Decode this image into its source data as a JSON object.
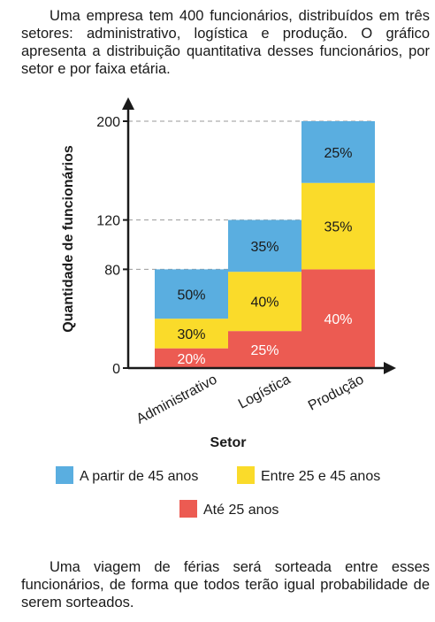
{
  "intro_text": "Uma empresa tem 400 funcionários, distribuídos em três setores: administrativo, logística e produção. O gráfico apresenta a distribuição quantitativa desses funcionários, por setor e por faixa etária.",
  "outro_text": "Uma viagem de férias será sorteada entre esses funcionários, de forma que todos terão igual probabilidade de serem sorteados.",
  "colors": {
    "above45": "#5aaee0",
    "between": "#fadb2a",
    "under25": "#ec5b52",
    "axis": "#1a1a1a",
    "guide": "#999999"
  },
  "chart_data": {
    "type": "bar",
    "stacked": true,
    "xlabel": "Setor",
    "ylabel": "Quantidade de funcionários",
    "ylim": [
      0,
      200
    ],
    "yticks": [
      "0",
      "80",
      "120",
      "200"
    ],
    "categories": [
      "Administrativo",
      "Logística",
      "Produção"
    ],
    "totals": [
      80,
      120,
      200
    ],
    "series": [
      {
        "name": "Até 25 anos",
        "values": [
          16,
          30,
          80
        ],
        "labels": [
          "20%",
          "25%",
          "40%"
        ]
      },
      {
        "name": "Entre 25 e 45 anos",
        "values": [
          24,
          48,
          70
        ],
        "labels": [
          "30%",
          "40%",
          "35%"
        ]
      },
      {
        "name": "A partir de 45 anos",
        "values": [
          40,
          42,
          50
        ],
        "labels": [
          "50%",
          "35%",
          "25%"
        ]
      }
    ],
    "legend": [
      "A partir de 45 anos",
      "Entre 25 e 45 anos",
      "Até 25 anos"
    ]
  }
}
